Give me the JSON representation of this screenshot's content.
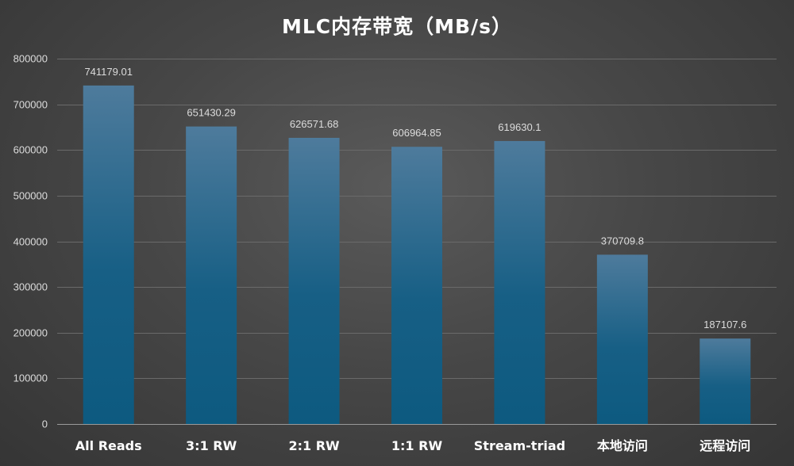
{
  "chart_data": {
    "type": "bar",
    "title": "MLC内存带宽（MB/s）",
    "categories": [
      "All Reads",
      "3:1 RW",
      "2:1 RW",
      "1:1 RW",
      "Stream-triad",
      "本地访问",
      "远程访问"
    ],
    "values": [
      741179.01,
      651430.29,
      626571.68,
      606964.85,
      619630.1,
      370709.8,
      187107.6
    ],
    "data_labels": [
      "741179.01",
      "651430.29",
      "626571.68",
      "606964.85",
      "619630.1",
      "370709.8",
      "187107.6"
    ],
    "y_ticks": [
      0,
      100000,
      200000,
      300000,
      400000,
      500000,
      600000,
      700000,
      800000
    ],
    "ylim": [
      0,
      800000
    ],
    "xlabel": "",
    "ylabel": "",
    "grid": true,
    "legend": "none",
    "colors": {
      "bar_top": "#4e7b9c",
      "bar_bottom": "#0d5a80",
      "background": "#474747",
      "text": "#ffffff"
    }
  }
}
